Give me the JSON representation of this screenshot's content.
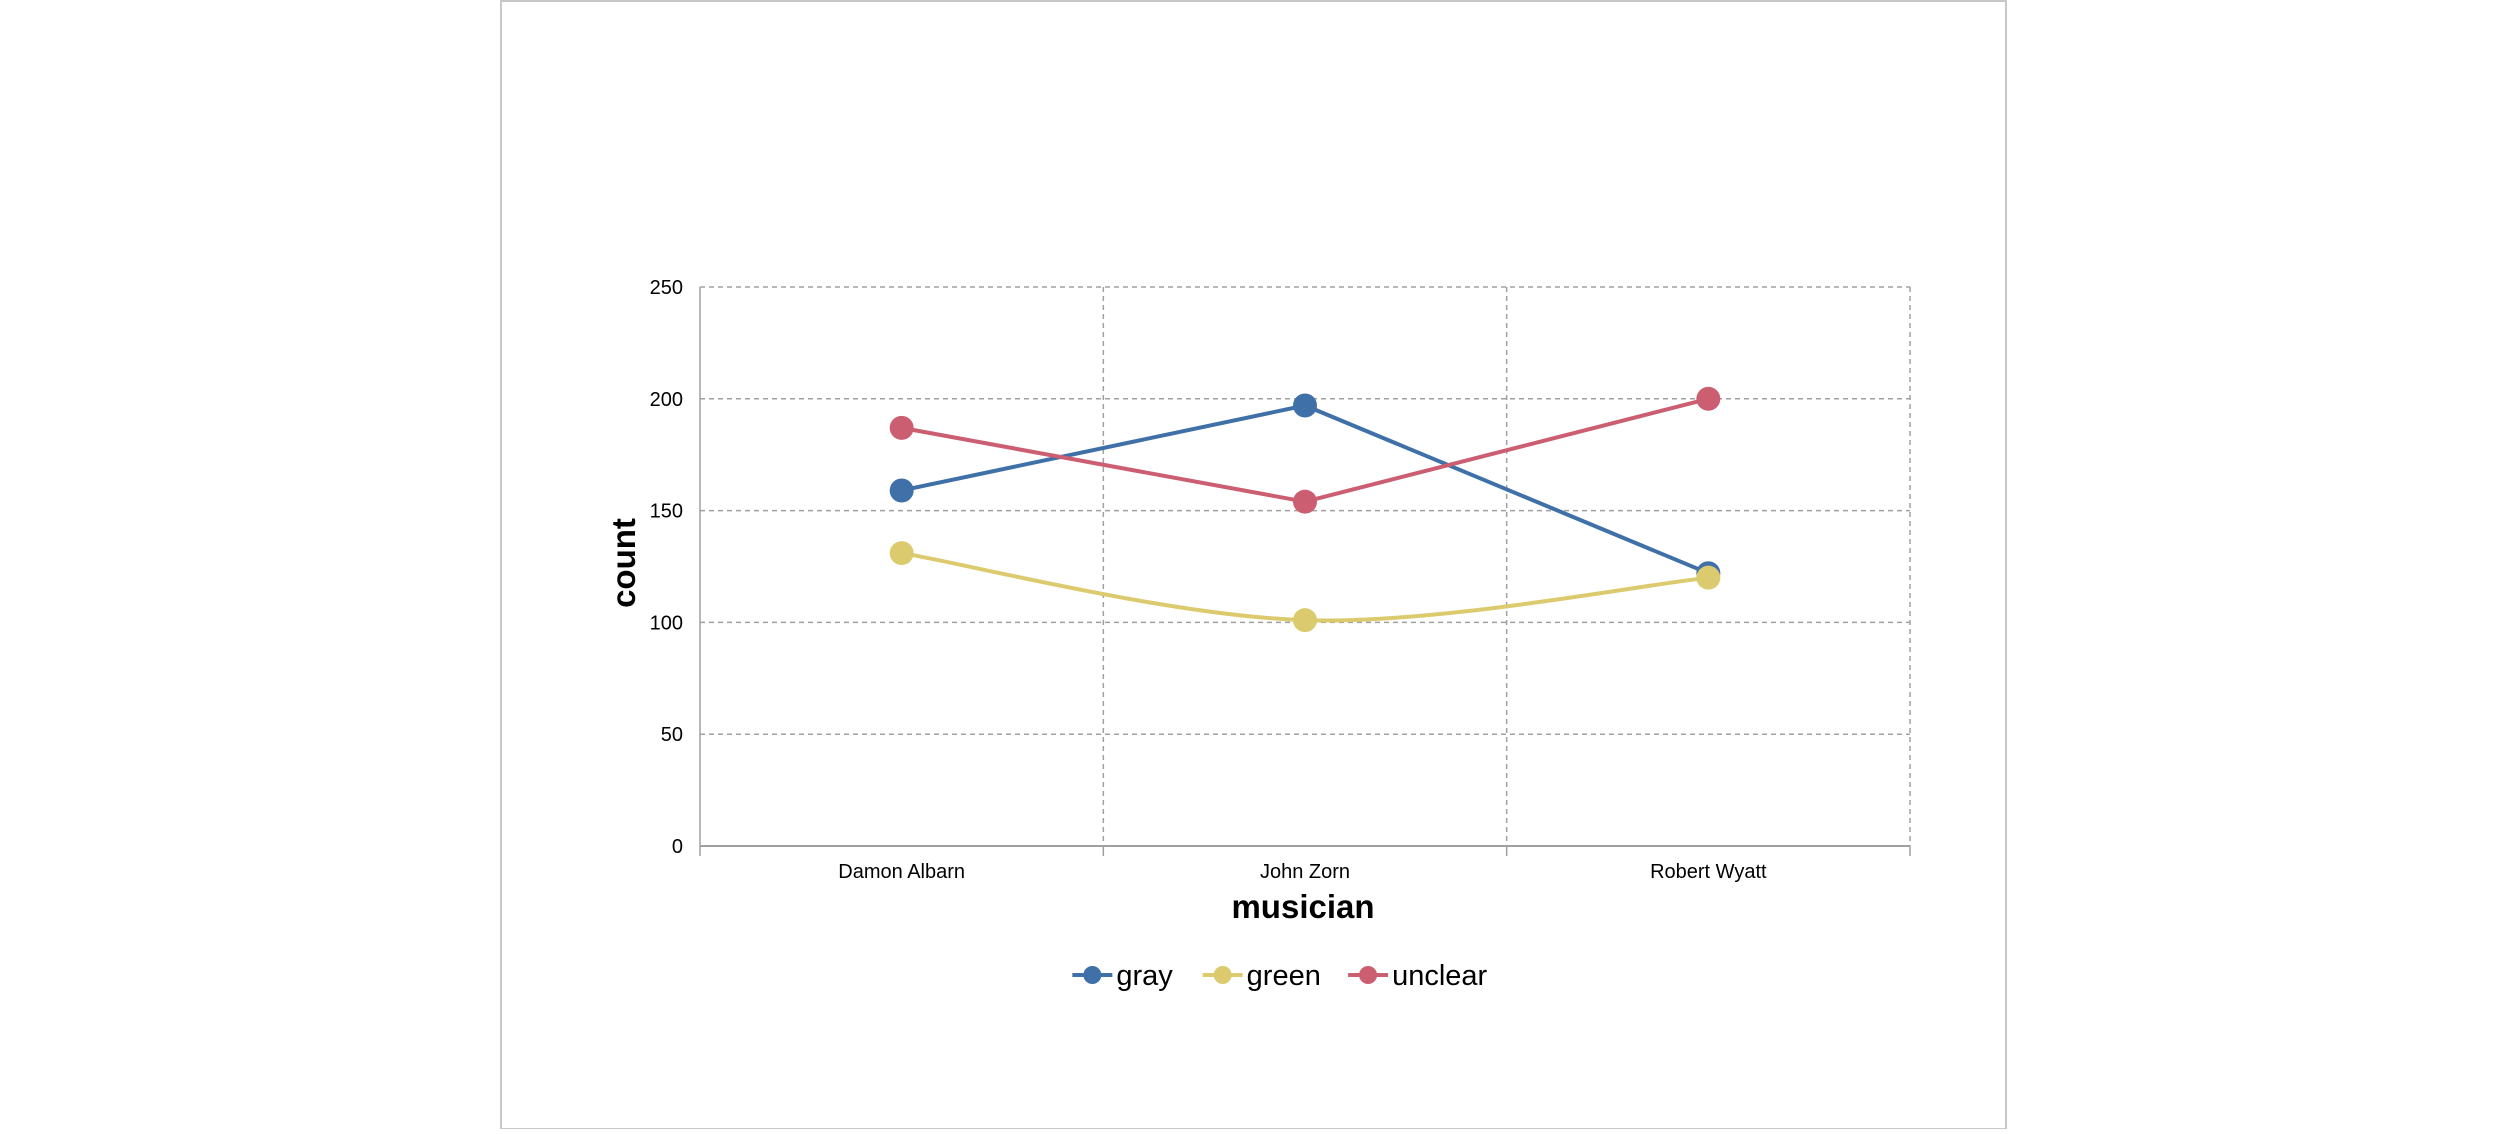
{
  "chart_data": {
    "type": "line",
    "xlabel": "musician",
    "ylabel": "count",
    "categories": [
      "Damon Albarn",
      "John Zorn",
      "Robert Wyatt"
    ],
    "ylim": [
      0,
      250
    ],
    "yticks": [
      "0",
      "50",
      "100",
      "150",
      "200",
      "250"
    ],
    "grid": true,
    "legend_position": "bottom-center",
    "series": [
      {
        "name": "gray",
        "color": "#3f70a8",
        "values": [
          159,
          197,
          122
        ],
        "curve": "straight"
      },
      {
        "name": "green",
        "color": "#dccb6e",
        "values": [
          131,
          101,
          120
        ],
        "curve": "smooth"
      },
      {
        "name": "unclear",
        "color": "#cc5e72",
        "values": [
          187,
          154,
          200
        ],
        "curve": "straight"
      }
    ]
  }
}
